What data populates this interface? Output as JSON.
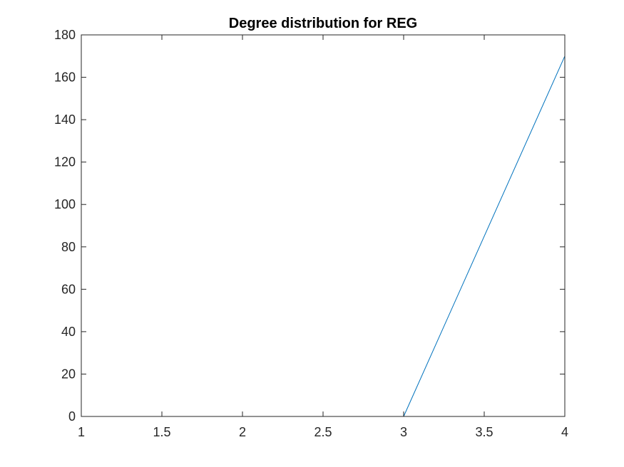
{
  "chart_data": {
    "type": "line",
    "title": "Degree distribution for REG",
    "xlabel": "",
    "ylabel": "",
    "x": [
      1,
      2,
      3,
      4
    ],
    "series": [
      {
        "values": [
          0,
          0,
          0,
          170
        ],
        "color": "#0072BD"
      }
    ],
    "xlim": [
      1,
      4
    ],
    "ylim": [
      0,
      180
    ],
    "xticks": [
      1,
      1.5,
      2,
      2.5,
      3,
      3.5,
      4
    ],
    "xtick_labels": [
      "1",
      "1.5",
      "2",
      "2.5",
      "3",
      "3.5",
      "4"
    ],
    "yticks": [
      0,
      20,
      40,
      60,
      80,
      100,
      120,
      140,
      160,
      180
    ],
    "ytick_labels": [
      "0",
      "20",
      "40",
      "60",
      "80",
      "100",
      "120",
      "140",
      "160",
      "180"
    ],
    "grid": false,
    "box": true
  }
}
